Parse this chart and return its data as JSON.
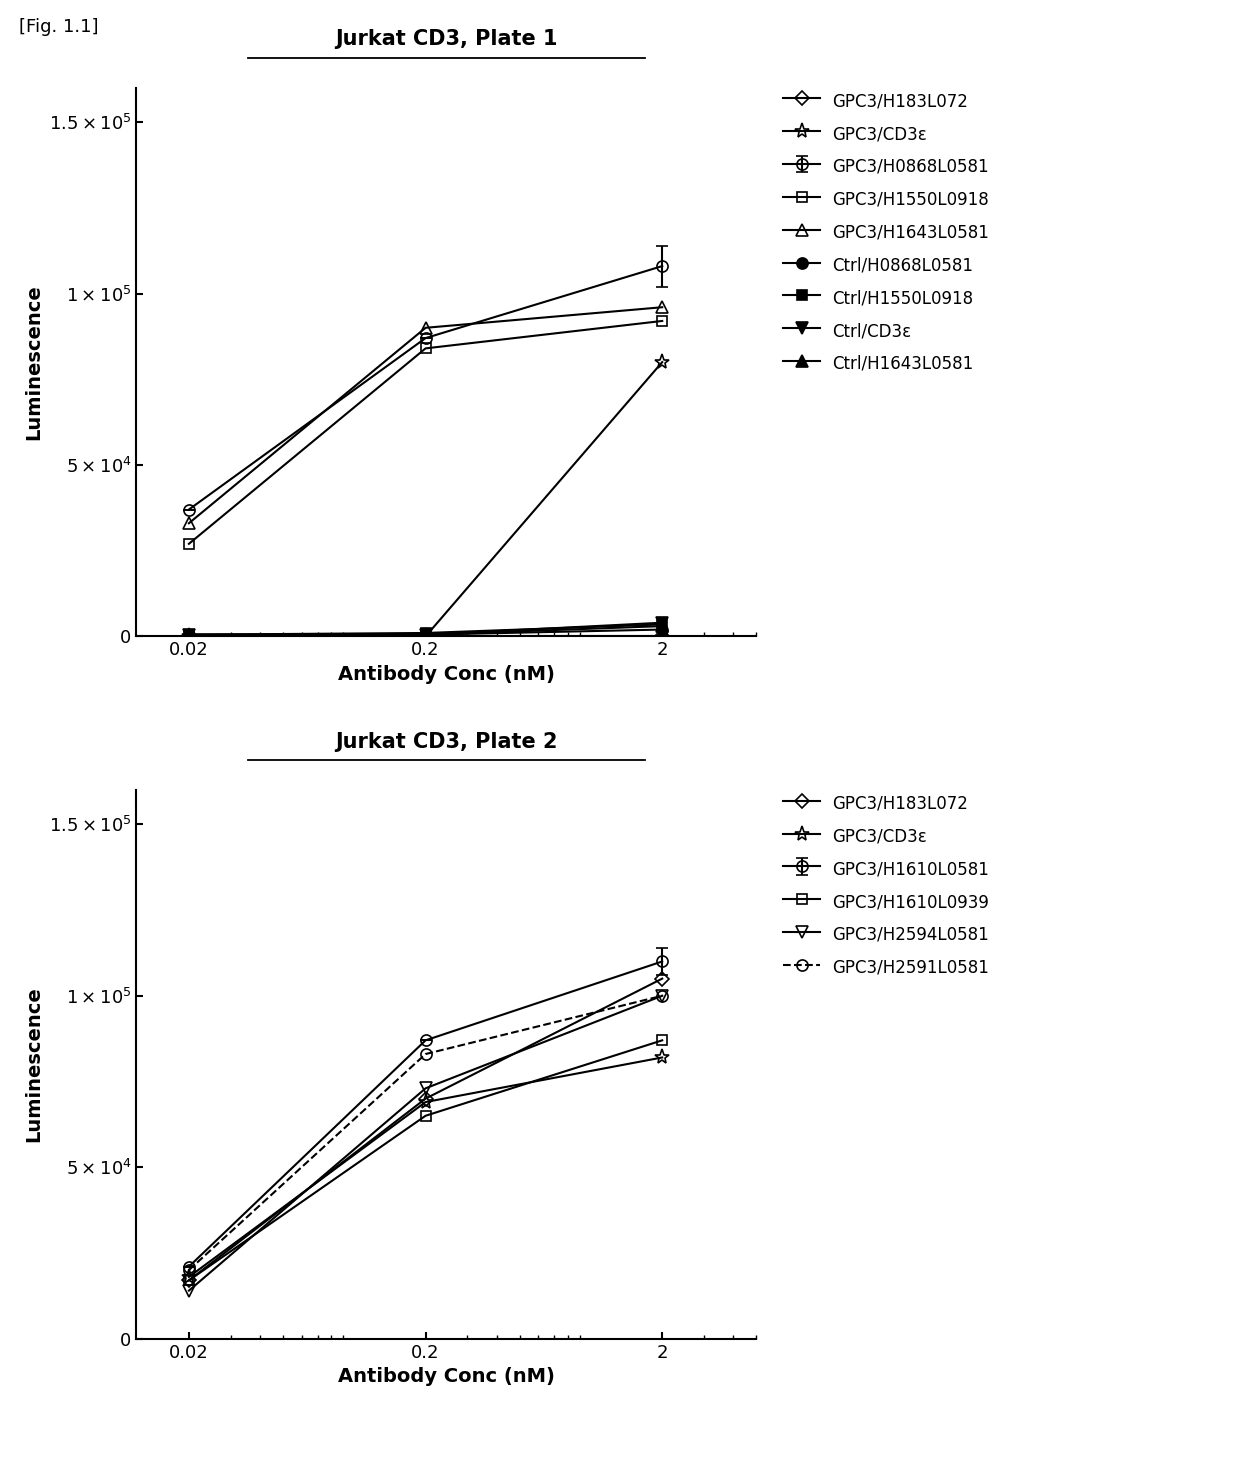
{
  "fig_label": "[Fig. 1.1]",
  "plate1": {
    "title": "Jurkat CD3, Plate 1",
    "xlabel": "Antibody Conc (nM)",
    "ylabel": "Luminescence",
    "x": [
      0.02,
      0.2,
      2
    ],
    "series": [
      {
        "label": "GPC3/H183L072",
        "y": [
          0,
          0,
          0
        ],
        "yerr": null,
        "marker": "D",
        "markersize": 7,
        "mfc": "none",
        "linewidth": 1.5,
        "linestyle": "-"
      },
      {
        "label": "GPC3/CD3ε",
        "y": [
          0,
          0,
          80000
        ],
        "yerr": null,
        "marker": "*",
        "markersize": 11,
        "mfc": "none",
        "linewidth": 1.5,
        "linestyle": "-"
      },
      {
        "label": "GPC3/H0868L0581",
        "y": [
          37000,
          87000,
          108000
        ],
        "yerr": [
          0,
          0,
          6000
        ],
        "marker": "o",
        "markersize": 8,
        "mfc": "none",
        "linewidth": 1.5,
        "linestyle": "-"
      },
      {
        "label": "GPC3/H1550L0918",
        "y": [
          27000,
          84000,
          92000
        ],
        "yerr": null,
        "marker": "s",
        "markersize": 7,
        "mfc": "none",
        "linewidth": 1.5,
        "linestyle": "-"
      },
      {
        "label": "GPC3/H1643L0581",
        "y": [
          33000,
          90000,
          96000
        ],
        "yerr": null,
        "marker": "^",
        "markersize": 8,
        "mfc": "none",
        "linewidth": 1.5,
        "linestyle": "-"
      },
      {
        "label": "Ctrl/H0868L0581",
        "y": [
          500,
          500,
          2000
        ],
        "yerr": null,
        "marker": "o",
        "markersize": 8,
        "mfc": "#000000",
        "linewidth": 1.5,
        "linestyle": "-"
      },
      {
        "label": "Ctrl/H1550L0918",
        "y": [
          500,
          1000,
          3500
        ],
        "yerr": null,
        "marker": "s",
        "markersize": 7,
        "mfc": "#000000",
        "linewidth": 1.5,
        "linestyle": "-"
      },
      {
        "label": "Ctrl/CD3ε",
        "y": [
          500,
          500,
          4000
        ],
        "yerr": null,
        "marker": "v",
        "markersize": 8,
        "mfc": "#000000",
        "linewidth": 1.5,
        "linestyle": "-"
      },
      {
        "label": "Ctrl/H1643L0581",
        "y": [
          500,
          500,
          3000
        ],
        "yerr": null,
        "marker": "^",
        "markersize": 8,
        "mfc": "#000000",
        "linewidth": 1.5,
        "linestyle": "-"
      }
    ],
    "ylim": [
      0,
      160000
    ],
    "yticks": [
      0,
      50000,
      100000,
      150000
    ]
  },
  "plate2": {
    "title": "Jurkat CD3, Plate 2",
    "xlabel": "Antibody Conc (nM)",
    "ylabel": "Luminescence",
    "x": [
      0.02,
      0.2,
      2
    ],
    "series": [
      {
        "label": "GPC3/H183L072",
        "y": [
          17000,
          70000,
          105000
        ],
        "yerr": null,
        "marker": "D",
        "markersize": 7,
        "mfc": "none",
        "linewidth": 1.5,
        "linestyle": "-"
      },
      {
        "label": "GPC3/CD3ε",
        "y": [
          18000,
          69000,
          82000
        ],
        "yerr": null,
        "marker": "*",
        "markersize": 11,
        "mfc": "none",
        "linewidth": 1.5,
        "linestyle": "-"
      },
      {
        "label": "GPC3/H1610L0581",
        "y": [
          21000,
          87000,
          110000
        ],
        "yerr": [
          0,
          0,
          4000
        ],
        "marker": "o",
        "markersize": 8,
        "mfc": "none",
        "linewidth": 1.5,
        "linestyle": "-"
      },
      {
        "label": "GPC3/H1610L0939",
        "y": [
          17000,
          65000,
          87000
        ],
        "yerr": null,
        "marker": "s",
        "markersize": 7,
        "mfc": "none",
        "linewidth": 1.5,
        "linestyle": "-"
      },
      {
        "label": "GPC3/H2594L0581",
        "y": [
          14000,
          73000,
          100000
        ],
        "yerr": null,
        "marker": "v",
        "markersize": 8,
        "mfc": "none",
        "linewidth": 1.5,
        "linestyle": "-"
      },
      {
        "label": "GPC3/H2591L0581",
        "y": [
          20000,
          83000,
          100000
        ],
        "yerr": null,
        "marker": "o",
        "markersize": 8,
        "mfc": "none",
        "linewidth": 1.5,
        "linestyle": "--"
      }
    ],
    "ylim": [
      0,
      160000
    ],
    "yticks": [
      0,
      50000,
      100000,
      150000
    ]
  },
  "color": "#000000",
  "bg_color": "#ffffff",
  "title_fontsize": 15,
  "label_fontsize": 14,
  "tick_fontsize": 13,
  "legend_fontsize": 12
}
